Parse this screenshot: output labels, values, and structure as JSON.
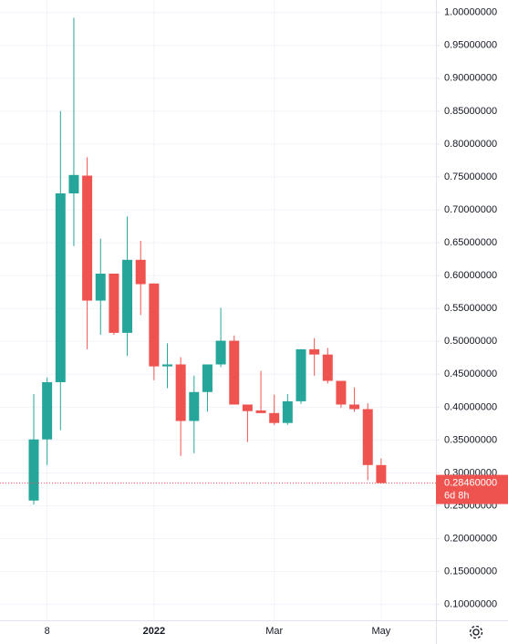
{
  "chart_data": {
    "type": "candlestick",
    "categories": [
      null,
      "8",
      null,
      null,
      null,
      null,
      null,
      null,
      null,
      "2022",
      null,
      null,
      null,
      null,
      null,
      null,
      null,
      null,
      "Mar",
      null,
      null,
      null,
      null,
      null,
      null,
      null,
      "May"
    ],
    "open": [
      0.258,
      0.351,
      0.438,
      0.725,
      0.752,
      0.562,
      0.603,
      0.513,
      0.624,
      0.588,
      0.462,
      0.465,
      0.379,
      0.423,
      0.465,
      0.501,
      0.404,
      0.395,
      0.391,
      0.376,
      0.409,
      0.488,
      0.48,
      0.44,
      0.404,
      0.397,
      0.312
    ],
    "high": [
      0.42,
      0.445,
      0.85,
      0.992,
      0.78,
      0.656,
      0.603,
      0.69,
      0.653,
      0.588,
      0.497,
      0.476,
      0.448,
      0.465,
      0.551,
      0.509,
      0.404,
      0.455,
      0.419,
      0.42,
      0.488,
      0.505,
      0.49,
      0.44,
      0.43,
      0.406,
      0.322
    ],
    "low": [
      0.252,
      0.312,
      0.365,
      0.645,
      0.488,
      0.51,
      0.51,
      0.478,
      0.54,
      0.441,
      0.429,
      0.326,
      0.33,
      0.393,
      0.461,
      0.404,
      0.347,
      0.391,
      0.373,
      0.373,
      0.405,
      0.448,
      0.436,
      0.399,
      0.393,
      0.289,
      0.2846
    ],
    "close": [
      0.351,
      0.438,
      0.725,
      0.753,
      0.562,
      0.603,
      0.513,
      0.624,
      0.587,
      0.462,
      0.465,
      0.379,
      0.423,
      0.465,
      0.501,
      0.404,
      0.394,
      0.391,
      0.376,
      0.409,
      0.488,
      0.48,
      0.44,
      0.404,
      0.397,
      0.312,
      0.2846
    ],
    "up_color": "#26a69a",
    "down_color": "#ef5350",
    "ylim": [
      0.076,
      1.019
    ],
    "yticks": [
      {
        "value": 0.1,
        "label": "0.10000000"
      },
      {
        "value": 0.15,
        "label": "0.15000000"
      },
      {
        "value": 0.2,
        "label": "0.20000000"
      },
      {
        "value": 0.25,
        "label": "0.25000000"
      },
      {
        "value": 0.3,
        "label": "0.30000000"
      },
      {
        "value": 0.35,
        "label": "0.35000000"
      },
      {
        "value": 0.4,
        "label": "0.40000000"
      },
      {
        "value": 0.45,
        "label": "0.45000000"
      },
      {
        "value": 0.5,
        "label": "0.50000000"
      },
      {
        "value": 0.55,
        "label": "0.55000000"
      },
      {
        "value": 0.6,
        "label": "0.60000000"
      },
      {
        "value": 0.65,
        "label": "0.65000000"
      },
      {
        "value": 0.7,
        "label": "0.70000000"
      },
      {
        "value": 0.75,
        "label": "0.75000000"
      },
      {
        "value": 0.8,
        "label": "0.80000000"
      },
      {
        "value": 0.85,
        "label": "0.85000000"
      },
      {
        "value": 0.9,
        "label": "0.90000000"
      },
      {
        "value": 0.95,
        "label": "0.95000000"
      },
      {
        "value": 1.0,
        "label": "1.00000000"
      }
    ],
    "grid": true,
    "last_price": {
      "value": 0.2846,
      "label": "0.28460000"
    },
    "countdown": "6d 8h"
  }
}
